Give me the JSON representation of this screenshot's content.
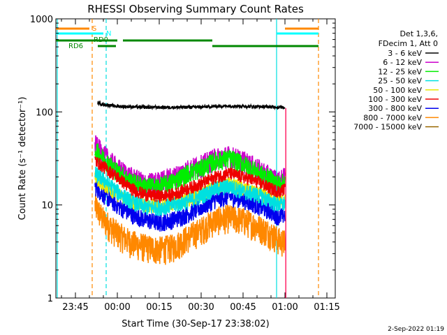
{
  "chart_data": {
    "type": "line",
    "title": "RHESSI Observing Summary Count Rates",
    "xlabel": "Start Time (30-Sep-17 23:38:02)",
    "ylabel": "Count Rate (s⁻¹ detector⁻¹)",
    "y_scale": "log",
    "ylim": [
      1,
      1000
    ],
    "y_ticks": [
      {
        "v": 1,
        "label": "1"
      },
      {
        "v": 10,
        "label": "10"
      },
      {
        "v": 100,
        "label": "100"
      },
      {
        "v": 1000,
        "label": "1000"
      }
    ],
    "xlim_minutes": [
      -22,
      78
    ],
    "x_ticks": [
      {
        "v": -15,
        "label": "23:45"
      },
      {
        "v": 0,
        "label": "00:00"
      },
      {
        "v": 15,
        "label": "00:15"
      },
      {
        "v": 30,
        "label": "00:30"
      },
      {
        "v": 45,
        "label": "00:45"
      },
      {
        "v": 60,
        "label": "01:00"
      },
      {
        "v": 75,
        "label": "01:15"
      }
    ],
    "legend_header": [
      "Det 1,3,6,",
      "FDecim 1, Att 0"
    ],
    "legend_placement": "right-outside",
    "series": [
      {
        "name": "3 - 6 keV",
        "color": "#000000",
        "x": [
          -7,
          -5,
          0,
          10,
          20,
          30,
          40,
          50,
          57,
          60
        ],
        "y": [
          125,
          120,
          115,
          112,
          112,
          113,
          116,
          114,
          113,
          112
        ]
      },
      {
        "name": "6 - 12 keV",
        "color": "#cc00cc",
        "x": [
          -8,
          -5,
          0,
          5,
          10,
          15,
          20,
          25,
          30,
          35,
          40,
          45,
          50,
          55,
          58,
          60
        ],
        "y": [
          45,
          35,
          25,
          20,
          17,
          18,
          20,
          24,
          27,
          32,
          34,
          30,
          25,
          20,
          18,
          20
        ]
      },
      {
        "name": "12 - 25 keV",
        "color": "#00ee00",
        "x": [
          -8,
          -5,
          0,
          5,
          10,
          15,
          20,
          25,
          30,
          35,
          40,
          45,
          50,
          55,
          58,
          60
        ],
        "y": [
          40,
          32,
          23,
          18,
          16,
          16,
          18,
          22,
          25,
          30,
          32,
          28,
          23,
          19,
          17,
          18
        ]
      },
      {
        "name": "25 - 50 keV",
        "color": "#00e0e0",
        "x": [
          -8,
          -5,
          0,
          5,
          10,
          15,
          20,
          25,
          30,
          35,
          40,
          45,
          50,
          55,
          58,
          60
        ],
        "y": [
          22,
          19,
          14,
          11,
          9.5,
          9.5,
          10,
          11,
          12.5,
          15,
          16,
          14,
          13,
          11,
          10,
          10.5
        ]
      },
      {
        "name": "50 - 100 keV",
        "color": "#e8e800",
        "x": [
          -8,
          -5,
          0,
          5,
          10,
          15,
          20,
          25,
          30,
          35,
          40,
          45,
          50,
          55,
          58,
          60
        ],
        "y": [
          20,
          17,
          13,
          11,
          10,
          10,
          10.5,
          11.5,
          13,
          16,
          17,
          15,
          13.5,
          12,
          11,
          11
        ]
      },
      {
        "name": "100 - 300 keV",
        "color": "#ee0000",
        "x": [
          -8,
          -5,
          0,
          5,
          10,
          15,
          20,
          25,
          30,
          35,
          40,
          45,
          50,
          55,
          58,
          60
        ],
        "y": [
          30,
          26,
          20,
          15,
          13,
          12.5,
          13,
          15,
          17,
          20,
          22,
          20,
          18,
          15,
          14,
          15
        ]
      },
      {
        "name": "300 - 800 keV",
        "color": "#0000ee",
        "x": [
          -8,
          -5,
          0,
          5,
          10,
          15,
          20,
          25,
          30,
          35,
          40,
          45,
          50,
          55,
          58,
          60
        ],
        "y": [
          16,
          13,
          10,
          8,
          7,
          6.5,
          7,
          8,
          9.5,
          11.5,
          12.5,
          11.5,
          10,
          8.5,
          7.5,
          8
        ]
      },
      {
        "name": "800 - 7000 keV",
        "color": "#ff8800",
        "x": [
          -8,
          -5,
          0,
          5,
          10,
          15,
          20,
          25,
          30,
          35,
          40,
          45,
          50,
          55,
          58,
          60
        ],
        "y": [
          10,
          7,
          5,
          4,
          3.6,
          3.4,
          3.6,
          4.5,
          5.5,
          7,
          7.5,
          7,
          6,
          5,
          4.2,
          4
        ]
      },
      {
        "name": "7000 - 15000 keV",
        "color": "#996600",
        "x": [],
        "y": []
      }
    ],
    "vertical_lines": [
      {
        "x": -21.5,
        "color": "#00e0e0",
        "style": "solid"
      },
      {
        "x": -9,
        "color": "#ff8800",
        "style": "dashed"
      },
      {
        "x": -4,
        "color": "#00e0e0",
        "style": "dashed"
      },
      {
        "x": 57,
        "color": "#00e0e0",
        "style": "solid"
      },
      {
        "x": 72,
        "color": "#ff8800",
        "style": "dashed"
      }
    ],
    "flag_bars": [
      {
        "label": "S",
        "color": "#ff8800",
        "segments": [
          [
            -22,
            -10
          ],
          [
            60,
            72
          ]
        ]
      },
      {
        "label": "N",
        "color": "#00ffff",
        "segments": [
          [
            -22,
            -5
          ],
          [
            57,
            72
          ]
        ]
      },
      {
        "label": "RD0",
        "color": "#008800",
        "segments": [
          [
            -22,
            0
          ],
          [
            2,
            34
          ]
        ]
      },
      {
        "label": "RD6",
        "color": "#008800",
        "segments": [
          [
            -7,
            -0.5
          ],
          [
            34,
            49
          ],
          [
            49,
            72
          ]
        ]
      }
    ],
    "timestamp": "2-Sep-2022 01:19"
  }
}
